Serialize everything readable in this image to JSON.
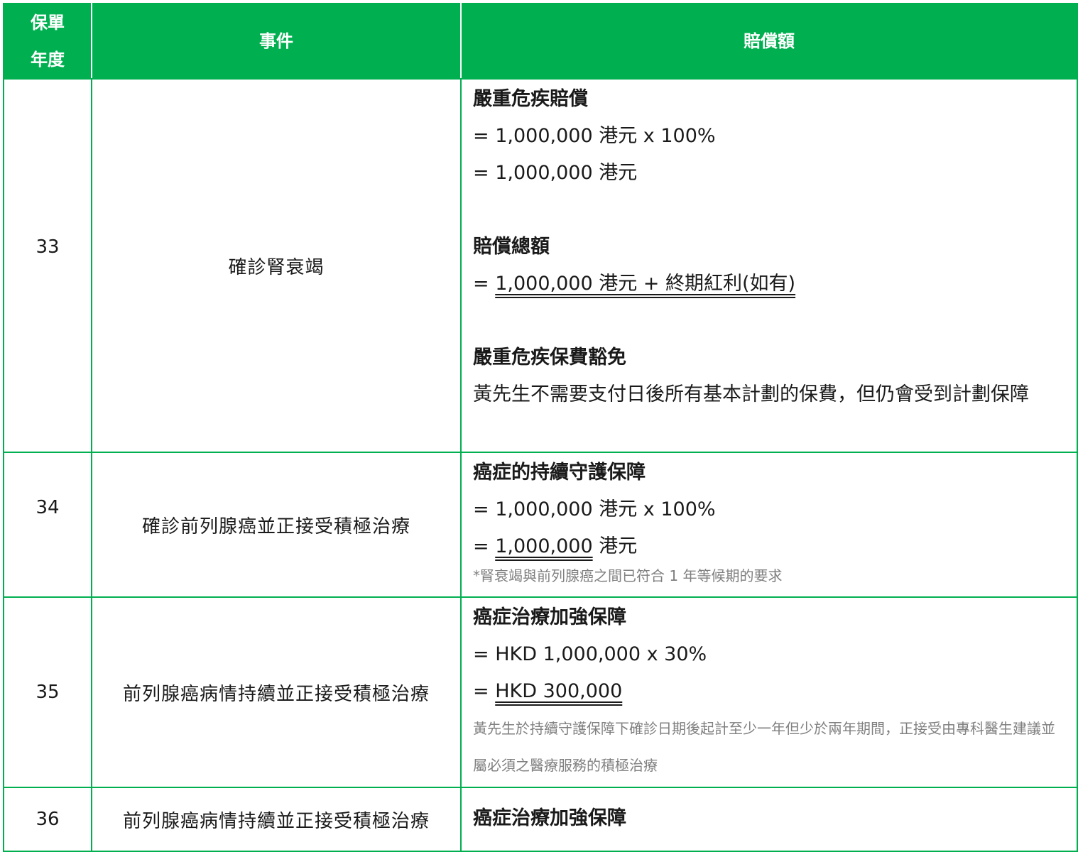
{
  "header": {
    "year_line1": "保單",
    "year_line2": "年度",
    "event": "事件",
    "amount": "賠償額"
  },
  "rows": [
    {
      "year": "33",
      "event": "確診腎衰竭",
      "sections": {
        "ci_title": "嚴重危疾賠償",
        "ci_line1": "= 1,000,000 港元 x 100%",
        "ci_line2": "= 1,000,000 港元",
        "total_title": "賠償總額",
        "total_prefix": "= ",
        "total_value": "1,000,000 港元 + 終期紅利(如有)",
        "waiver_title": "嚴重危疾保費豁免",
        "waiver_text": "黃先生不需要支付日後所有基本計劃的保費，但仍會受到計劃保障"
      }
    },
    {
      "year": "34",
      "event": "確診前列腺癌並正接受積極治療",
      "sections": {
        "title": "癌症的持續守護保障",
        "line1": "= 1,000,000 港元 x 100%",
        "line2_prefix": "= ",
        "line2_value": "1,000,000",
        "line2_suffix": " 港元",
        "note": "*腎衰竭與前列腺癌之間已符合 1 年等候期的要求"
      }
    },
    {
      "year": "35",
      "event": "前列腺癌病情持續並正接受積極治療",
      "sections": {
        "title": "癌症治療加強保障",
        "line1": "= HKD 1,000,000 x 30%",
        "line2_prefix": "= ",
        "line2_value": "HKD 300,000",
        "note": "黃先生於持續守護保障下確診日期後起計至少一年但少於兩年期間，正接受由專科醫生建議並屬必須之醫療服務的積極治療"
      }
    },
    {
      "year": "36",
      "event": "前列腺癌病情持續並正接受積極治療",
      "sections": {
        "title": "癌症治療加強保障"
      }
    }
  ],
  "colors": {
    "header_bg": "#00b050",
    "header_text": "#ffffff",
    "border": "#00b050",
    "note_text": "#808080"
  }
}
